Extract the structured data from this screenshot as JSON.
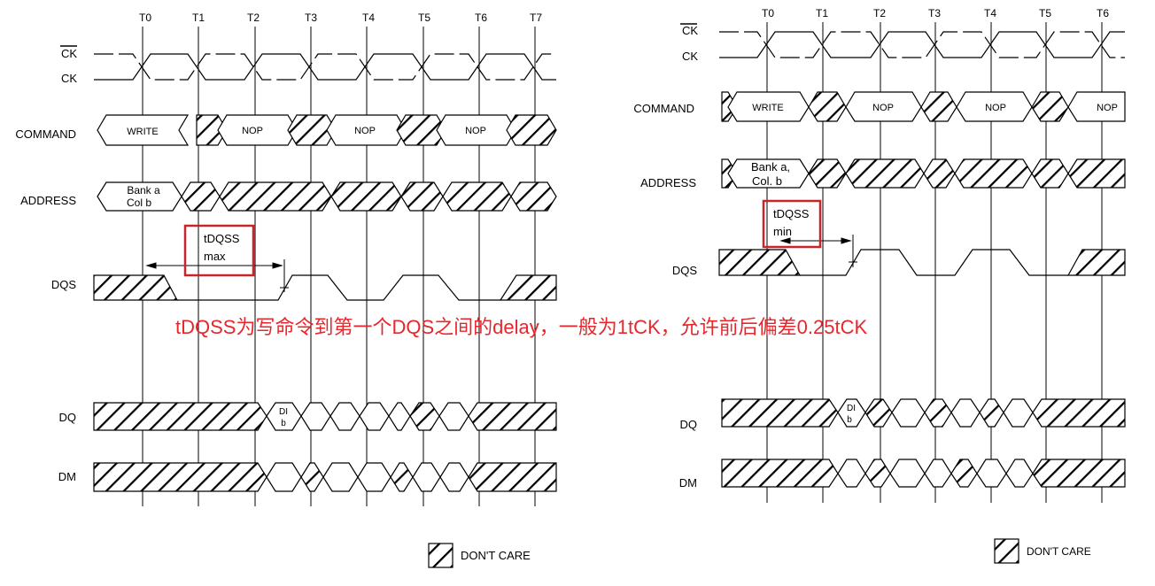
{
  "left": {
    "time_labels": [
      "T0",
      "T1",
      "T2",
      "T3",
      "T4",
      "T5",
      "T6",
      "T7"
    ],
    "signals": {
      "ck_bar": "CK",
      "ck": "CK",
      "command": "COMMAND",
      "address": "ADDRESS",
      "dqs": "DQS",
      "dq": "DQ",
      "dm": "DM"
    },
    "commands": {
      "write": "WRITE",
      "nop1": "NOP",
      "nop2": "NOP",
      "nop3": "NOP"
    },
    "address": {
      "line1": "Bank a",
      "line2": "Col b"
    },
    "dq_data": {
      "line1": "DI",
      "line2": "b"
    },
    "tdqss": {
      "line1": "tDQSS",
      "line2": "max"
    },
    "legend": "DON'T CARE"
  },
  "right": {
    "time_labels": [
      "T0",
      "T1",
      "T2",
      "T3",
      "T4",
      "T5",
      "T6"
    ],
    "signals": {
      "ck_bar": "CK",
      "ck": "CK",
      "command": "COMMAND",
      "address": "ADDRESS",
      "dqs": "DQS",
      "dq": "DQ",
      "dm": "DM"
    },
    "commands": {
      "write": "WRITE",
      "nop1": "NOP",
      "nop2": "NOP",
      "nop3": "NOP"
    },
    "address": {
      "line1": "Bank a,",
      "line2": "Col. b"
    },
    "dq_data": {
      "line1": "DI",
      "line2": "b"
    },
    "tdqss": {
      "line1": "tDQSS",
      "line2": "min"
    },
    "legend": "DON'T CARE"
  },
  "annotation": "tDQSS为写命令到第一个DQS之间的delay，一般为1tCK，允许前后偏差0.25tCK",
  "colors": {
    "annotation": "#e8262b",
    "highlight_box": "#c8242b",
    "lines": "#000000"
  }
}
